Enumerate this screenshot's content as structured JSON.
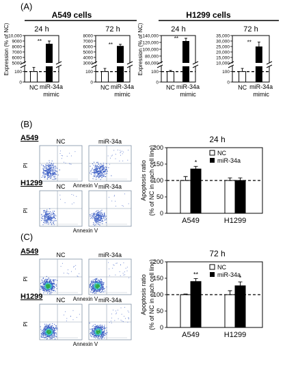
{
  "panel_labels": [
    "(A)",
    "(B)",
    "(C)"
  ],
  "panelA": {
    "groups": [
      "A549 cells",
      "H1299 cells"
    ],
    "ylabel": "Expression (% of NC)",
    "xcat_nc": "NC",
    "xcat_mimic_1": "miR-34a",
    "xcat_mimic_2": "mimic",
    "sig": "**"
  },
  "panelB": {
    "flow": {
      "cell_a": "A549",
      "cell_b": "H1299",
      "col_nc": "NC",
      "col_mir": "miR-34a",
      "ylabel": "PI",
      "xlabel": "Annexin V"
    },
    "legend": [
      "NC",
      "miR-34a"
    ]
  },
  "panelC": {
    "flow": {
      "cell_a": "A549",
      "cell_b": "H1299",
      "col_nc": "NC",
      "col_mir": "miR-34a",
      "ylabel": "PI",
      "xlabel": "Annexin V"
    },
    "legend": [
      "NC",
      "miR-34a"
    ]
  },
  "chart_data": [
    {
      "type": "bar",
      "title": "24 h",
      "group": "A549 cells",
      "categories": [
        "NC",
        "miR-34a mimic"
      ],
      "values": [
        100,
        8500
      ],
      "errors": [
        40,
        500
      ],
      "yticks_lower": [
        "0",
        "100"
      ],
      "yticks_upper": [
        "5000",
        "6000",
        "7000",
        "8000",
        "9000",
        "10,000"
      ],
      "lower_ylim": [
        0,
        150
      ],
      "upper_ylim": [
        5000,
        10000
      ],
      "significance": "**",
      "axis_break": true
    },
    {
      "type": "bar",
      "title": "72 h",
      "group": "A549 cells",
      "categories": [
        "NC",
        "miR-34a mimic"
      ],
      "values": [
        100,
        6100
      ],
      "errors": [
        30,
        300
      ],
      "yticks_lower": [
        "0",
        "100"
      ],
      "yticks_upper": [
        "3000",
        "4000",
        "5000",
        "6000",
        "7000",
        "8000"
      ],
      "lower_ylim": [
        0,
        150
      ],
      "upper_ylim": [
        3000,
        8000
      ],
      "significance": "**",
      "axis_break": true
    },
    {
      "type": "bar",
      "title": "24 h",
      "group": "H1299 cells",
      "categories": [
        "NC",
        "miR-34a mimic"
      ],
      "values": [
        100,
        124000
      ],
      "errors": [
        10,
        8000
      ],
      "yticks_lower": [
        "0",
        "100"
      ],
      "yticks_upper": [
        "60,000",
        "80,000",
        "100,000",
        "120,000",
        "140,000"
      ],
      "lower_ylim": [
        0,
        150
      ],
      "upper_ylim": [
        60000,
        140000
      ],
      "significance": "**",
      "axis_break": true
    },
    {
      "type": "bar",
      "title": "72 h",
      "group": "H1299 cells",
      "categories": [
        "NC",
        "miR-34a mimic"
      ],
      "values": [
        100,
        25000
      ],
      "errors": [
        30,
        4000
      ],
      "yticks_lower": [
        "0",
        "100"
      ],
      "yticks_upper": [
        "10,000",
        "15,000",
        "20,000",
        "25,000",
        "30,000",
        "35,000"
      ],
      "lower_ylim": [
        0,
        150
      ],
      "upper_ylim": [
        10000,
        35000
      ],
      "significance": "**",
      "axis_break": true
    },
    {
      "type": "bar",
      "title": "24 h",
      "ylabel": "Apoptosis ratio (% of NC in each cell line)",
      "categories": [
        "A549",
        "H1299"
      ],
      "series": [
        {
          "name": "NC",
          "values": [
            100,
            100
          ],
          "errors": [
            12,
            8
          ]
        },
        {
          "name": "miR-34a",
          "values": [
            135,
            100
          ],
          "errors": [
            8,
            8
          ]
        }
      ],
      "significance": [
        "*",
        ""
      ],
      "ylim": [
        0,
        200
      ],
      "yticks": [
        0,
        50,
        100,
        150,
        200
      ],
      "reference_line": 100
    },
    {
      "type": "bar",
      "title": "72 h",
      "ylabel": "Apoptosis ratio (% of NC in each cell line)",
      "categories": [
        "A549",
        "H1299"
      ],
      "series": [
        {
          "name": "NC",
          "values": [
            100,
            100
          ],
          "errors": [
            2,
            12
          ]
        },
        {
          "name": "miR-34a",
          "values": [
            140,
            127
          ],
          "errors": [
            9,
            12
          ]
        }
      ],
      "significance": [
        "**",
        "*"
      ],
      "ylim": [
        0,
        200
      ],
      "yticks": [
        0,
        50,
        100,
        150,
        200
      ],
      "reference_line": 100
    }
  ]
}
